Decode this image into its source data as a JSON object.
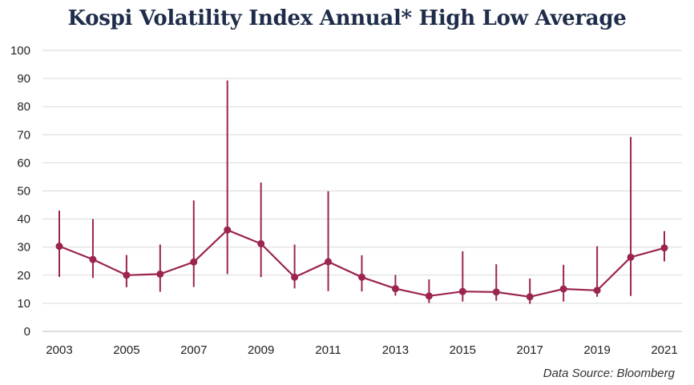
{
  "title": "Kospi Volatility Index Annual* High Low Average",
  "source": "Data Source: Bloomberg",
  "colors": {
    "series": "#9b2450",
    "grid": "#d9d9d9",
    "axis": "#bfbfbf",
    "title": "#1f2d4a"
  },
  "chart_data": {
    "type": "line",
    "title": "Kospi Volatility Index Annual* High Low Average",
    "xlabel": "",
    "ylabel": "",
    "ylim": [
      0,
      100
    ],
    "yticks": [
      0,
      10,
      20,
      30,
      40,
      50,
      60,
      70,
      80,
      90,
      100
    ],
    "xticks": [
      2003,
      2005,
      2007,
      2009,
      2011,
      2013,
      2015,
      2017,
      2019,
      2021
    ],
    "grid": true,
    "legend": "none",
    "x": [
      2003,
      2004,
      2005,
      2006,
      2007,
      2008,
      2009,
      2010,
      2011,
      2012,
      2013,
      2014,
      2015,
      2016,
      2017,
      2018,
      2019,
      2020,
      2021
    ],
    "series": [
      {
        "average": [
          30.3,
          25.6,
          20.0,
          20.4,
          24.7,
          36.1,
          31.2,
          19.3,
          24.8,
          19.3,
          15.2,
          12.6,
          14.2,
          14.0,
          12.3,
          15.1,
          14.6,
          26.4,
          29.7
        ],
        "high": [
          43.0,
          40.0,
          27.2,
          30.9,
          46.6,
          89.3,
          53.0,
          30.9,
          49.9,
          27.1,
          20.1,
          18.5,
          28.5,
          23.9,
          18.8,
          23.7,
          30.3,
          69.2,
          35.7
        ],
        "low": [
          19.4,
          19.0,
          15.7,
          14.1,
          15.8,
          20.4,
          19.3,
          15.3,
          14.3,
          14.2,
          12.7,
          10.1,
          10.6,
          10.9,
          9.8,
          10.6,
          12.3,
          12.6,
          24.9
        ]
      }
    ]
  }
}
